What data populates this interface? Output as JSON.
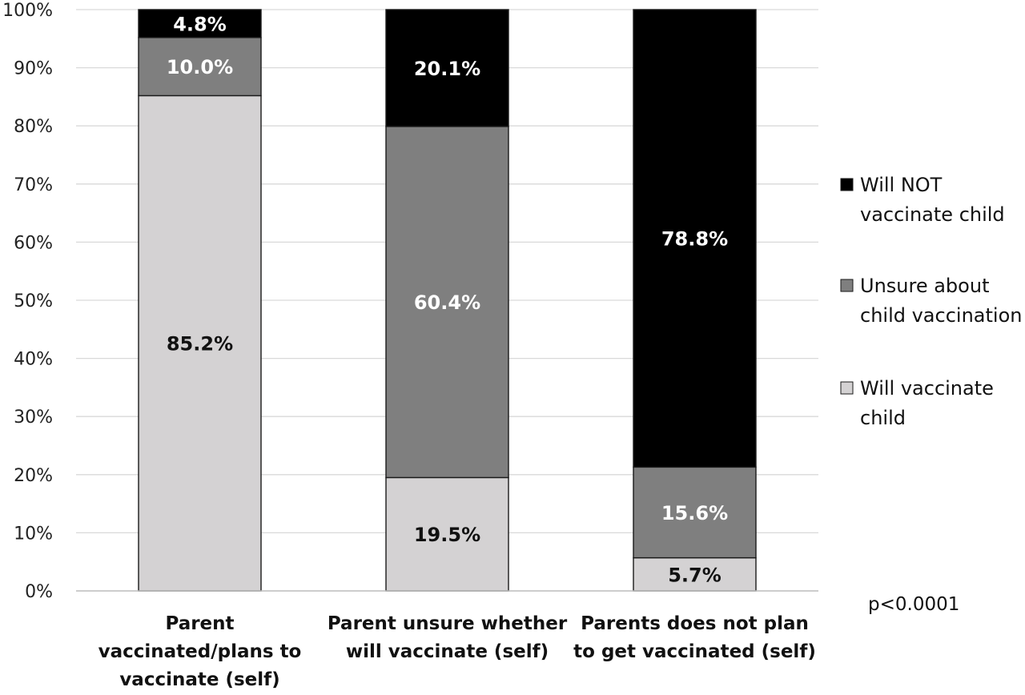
{
  "chart_data": {
    "type": "bar",
    "stacked": true,
    "percent": true,
    "categories": [
      [
        "Parent",
        "vaccinated/plans to",
        "vaccinate (self)"
      ],
      [
        "Parent unsure whether",
        "will vaccinate (self)"
      ],
      [
        "Parents does not plan",
        "to get vaccinated (self)"
      ]
    ],
    "series": [
      {
        "name": "Will vaccinate child",
        "values": [
          85.2,
          19.5,
          5.7
        ],
        "color": "#d4d2d3",
        "label_color": "#111111"
      },
      {
        "name": "Unsure about child vaccination",
        "values": [
          10.0,
          60.4,
          15.6
        ],
        "color": "#7f7f7f",
        "label_color": "#ffffff"
      },
      {
        "name": "Will NOT vaccinate child",
        "values": [
          4.8,
          20.1,
          78.8
        ],
        "color": "#000000",
        "label_color": "#ffffff"
      }
    ],
    "data_labels": [
      [
        "85.2%",
        "19.5%",
        "5.7%"
      ],
      [
        "10.0%",
        "60.4%",
        "15.6%"
      ],
      [
        "4.8%",
        "20.1%",
        "78.8%"
      ]
    ],
    "legend": [
      {
        "lines": [
          "Will NOT",
          "vaccinate child"
        ],
        "color": "#000000"
      },
      {
        "lines": [
          "Unsure about",
          "child vaccination"
        ],
        "color": "#7f7f7f"
      },
      {
        "lines": [
          "Will vaccinate",
          "child"
        ],
        "color": "#d4d2d3"
      }
    ],
    "legend_position": "right",
    "yticks": [
      "0%",
      "10%",
      "20%",
      "30%",
      "40%",
      "50%",
      "60%",
      "70%",
      "80%",
      "90%",
      "100%"
    ],
    "ylim": [
      0,
      100
    ],
    "grid": true,
    "annotation": "p<0.0001",
    "title": "",
    "xlabel": "",
    "ylabel": ""
  }
}
